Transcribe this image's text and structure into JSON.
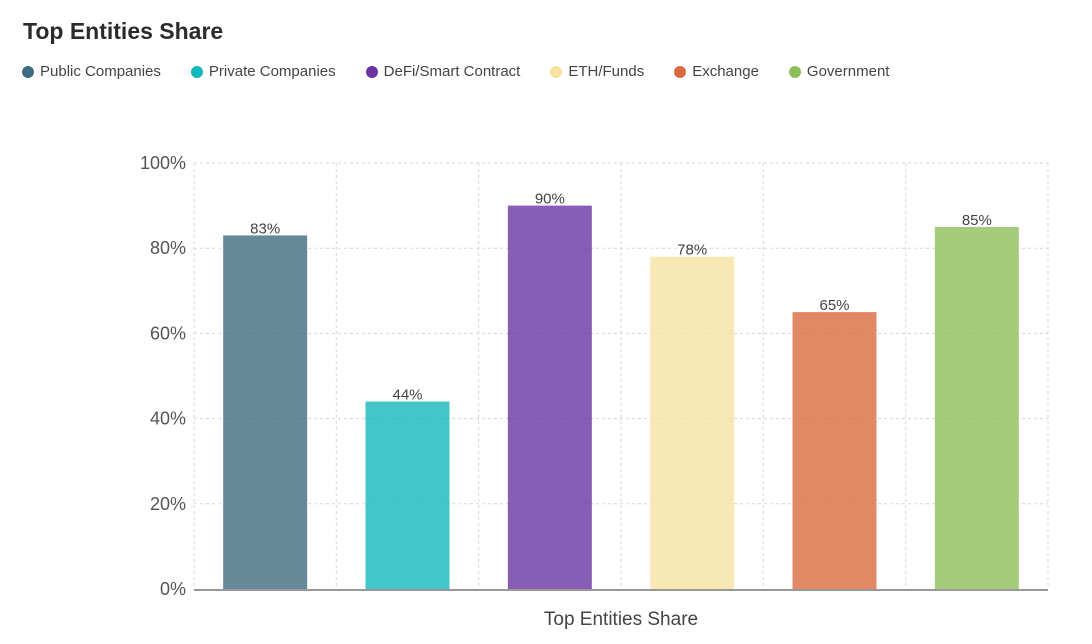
{
  "chart_data": {
    "type": "bar",
    "title": "Top Entities Share",
    "xlabel": "Top Entities Share",
    "ylabel": "",
    "ylim": [
      0,
      100
    ],
    "yticks": [
      "0%",
      "20%",
      "40%",
      "60%",
      "80%",
      "100%"
    ],
    "grid": true,
    "legend_placement": "top-left",
    "categories": [
      "Public Companies",
      "Private Companies",
      "DeFi/Smart Contract",
      "ETH/Funds",
      "Exchange",
      "Government"
    ],
    "values": [
      83,
      44,
      90,
      78,
      65,
      85
    ],
    "data_labels": [
      "83%",
      "44%",
      "90%",
      "78%",
      "65%",
      "85%"
    ],
    "colors": [
      "#3f6c80",
      "#14b8bb",
      "#6a35a2",
      "#f6e3a1",
      "#d96a3f",
      "#8ebe5c"
    ]
  }
}
